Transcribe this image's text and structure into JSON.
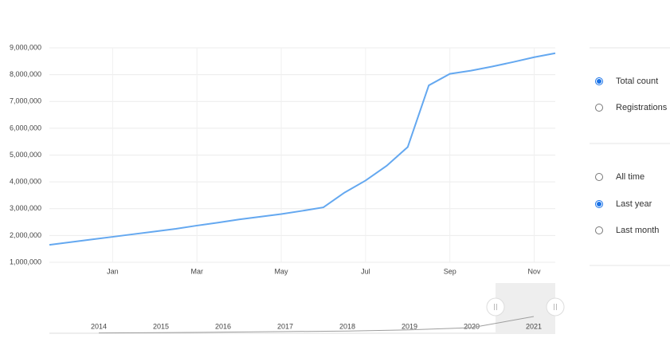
{
  "chart_data": [
    {
      "type": "line",
      "color": "#64a8f0",
      "grid": true,
      "categories": [
        null,
        null,
        null,
        "Jan",
        null,
        null,
        null,
        "Mar",
        null,
        null,
        null,
        "May",
        null,
        null,
        null,
        "Jul",
        null,
        null,
        null,
        "Sep",
        null,
        null,
        null,
        "Nov",
        null
      ],
      "values": [
        1650000,
        1750000,
        1850000,
        1950000,
        2050000,
        2150000,
        2250000,
        2370000,
        2480000,
        2600000,
        2700000,
        2800000,
        2920000,
        3050000,
        3600000,
        4050000,
        4600000,
        5300000,
        7600000,
        8030000,
        8150000,
        8300000,
        8470000,
        8650000,
        8800000
      ],
      "ylim": [
        1000000,
        9000000
      ],
      "yticks": [
        {
          "value": 1000000,
          "label": "1,000,000"
        },
        {
          "value": 2000000,
          "label": "2,000,000"
        },
        {
          "value": 3000000,
          "label": "3,000,000"
        },
        {
          "value": 4000000,
          "label": "4,000,000"
        },
        {
          "value": 5000000,
          "label": "5,000,000"
        },
        {
          "value": 6000000,
          "label": "6,000,000"
        },
        {
          "value": 7000000,
          "label": "7,000,000"
        },
        {
          "value": 8000000,
          "label": "8,000,000"
        },
        {
          "value": 9000000,
          "label": "9,000,000"
        }
      ]
    },
    {
      "type": "line",
      "color": "#9e9e9e",
      "categories": [
        "2014",
        "2015",
        "2016",
        "2017",
        "2018",
        "2019",
        "2020",
        "2021"
      ],
      "values": [
        50000,
        100000,
        200000,
        300000,
        400000,
        600000,
        1000000,
        3000000
      ],
      "ylim": [
        0,
        9000000
      ]
    }
  ],
  "controls": {
    "metric": {
      "options": [
        "Total count",
        "Registrations"
      ],
      "selected": 0
    },
    "range": {
      "options": [
        "All time",
        "Last year",
        "Last month"
      ],
      "selected": 1
    }
  }
}
